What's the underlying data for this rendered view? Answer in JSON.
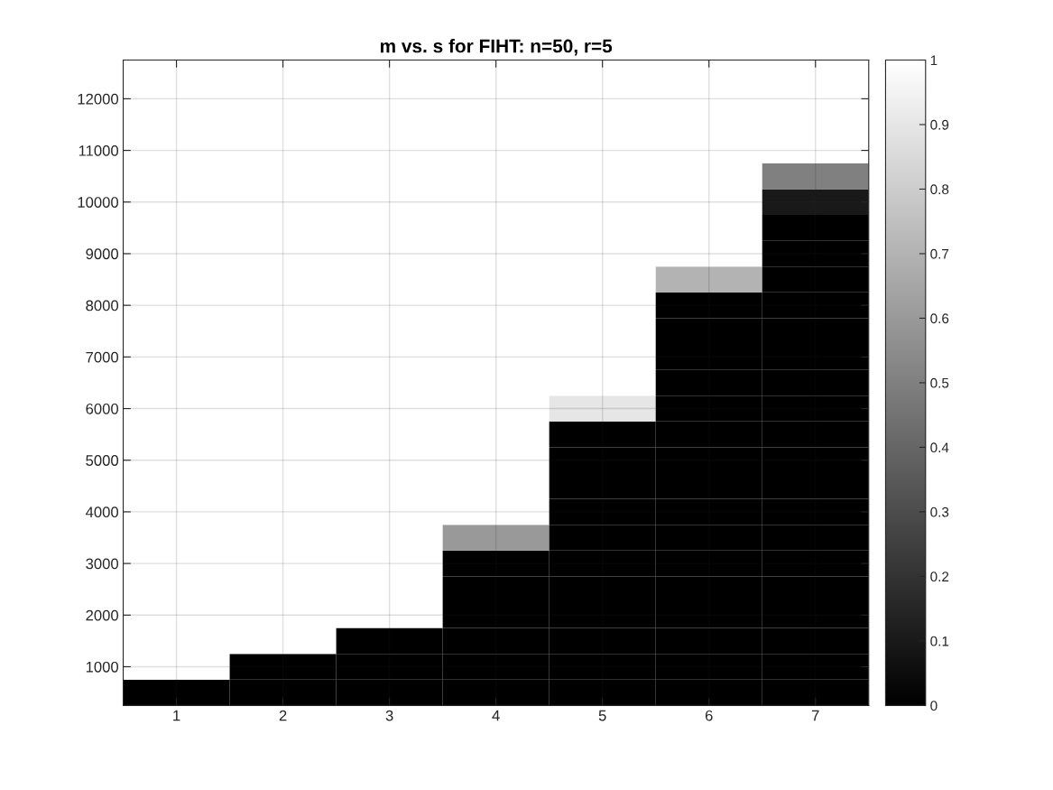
{
  "chart_data": {
    "type": "heatmap",
    "title": "m vs. s for FIHT: n=50, r=5",
    "categories": [
      "1",
      "2",
      "3",
      "4",
      "5",
      "6",
      "7"
    ],
    "y_categories": [
      null,
      "12000",
      null,
      "11000",
      null,
      "10000",
      null,
      "9000",
      null,
      "8000",
      null,
      "7000",
      null,
      "6000",
      null,
      "5000",
      null,
      "4000",
      null,
      "3000",
      null,
      "2000",
      null,
      "1000",
      null
    ],
    "clim": [
      0,
      1
    ],
    "cticks": [
      0,
      0.1,
      0.2,
      0.3,
      0.4,
      0.5,
      0.6,
      0.7,
      0.8,
      0.9,
      1
    ],
    "grid": true,
    "cells": [
      [
        1,
        1,
        1,
        1,
        1,
        1,
        1
      ],
      [
        1,
        1,
        1,
        1,
        1,
        1,
        1
      ],
      [
        1,
        1,
        1,
        1,
        1,
        1,
        1
      ],
      [
        1,
        1,
        1,
        1,
        1,
        1,
        1
      ],
      [
        1,
        1,
        1,
        1,
        1,
        1,
        0.5
      ],
      [
        1,
        1,
        1,
        1,
        1,
        1,
        0.1
      ],
      [
        1,
        1,
        1,
        1,
        1,
        1,
        0
      ],
      [
        1,
        1,
        1,
        1,
        1,
        1,
        0
      ],
      [
        1,
        1,
        1,
        1,
        1,
        0.7,
        0
      ],
      [
        1,
        1,
        1,
        1,
        1,
        0,
        0
      ],
      [
        1,
        1,
        1,
        1,
        1,
        0,
        0
      ],
      [
        1,
        1,
        1,
        1,
        1,
        0,
        0
      ],
      [
        1,
        1,
        1,
        1,
        1,
        0,
        0
      ],
      [
        1,
        1,
        1,
        1,
        0.9,
        0,
        0
      ],
      [
        1,
        1,
        1,
        1,
        0,
        0,
        0
      ],
      [
        1,
        1,
        1,
        1,
        0,
        0,
        0
      ],
      [
        1,
        1,
        1,
        1,
        0,
        0,
        0
      ],
      [
        1,
        1,
        1,
        1,
        0,
        0,
        0
      ],
      [
        1,
        1,
        1,
        0.6,
        0,
        0,
        0
      ],
      [
        1,
        1,
        1,
        0,
        0,
        0,
        0
      ],
      [
        1,
        1,
        1,
        0,
        0,
        0,
        0
      ],
      [
        1,
        1,
        1,
        0,
        0,
        0,
        0
      ],
      [
        1,
        1,
        0,
        0,
        0,
        0,
        0
      ],
      [
        1,
        0,
        0,
        0,
        0,
        0,
        0
      ],
      [
        0,
        0,
        0,
        0,
        0,
        0,
        0
      ]
    ]
  }
}
